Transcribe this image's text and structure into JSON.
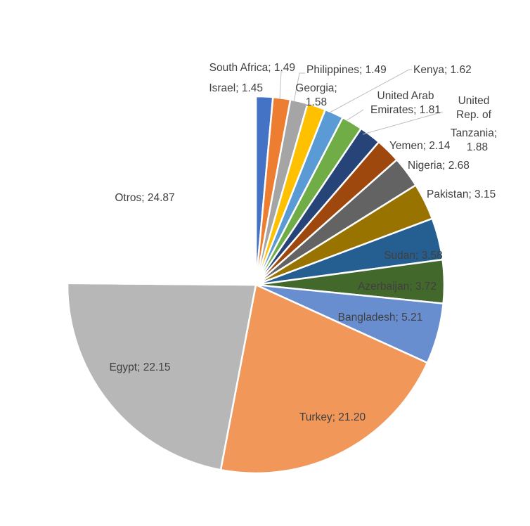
{
  "chart_data": {
    "type": "pie",
    "title": "",
    "slices": [
      {
        "label": "Israel",
        "value": 1.45,
        "text": "Israel; 1.45",
        "color": "#4472C4"
      },
      {
        "label": "South Africa",
        "value": 1.49,
        "text": "South Africa; 1.49",
        "color": "#ED7D31"
      },
      {
        "label": "Philippines",
        "value": 1.49,
        "text": "Philippines; 1.49",
        "color": "#A5A5A5"
      },
      {
        "label": "Georgia",
        "value": 1.58,
        "text": "Georgia; 1.58",
        "color": "#FFC000"
      },
      {
        "label": "Kenya",
        "value": 1.62,
        "text": "Kenya; 1.62",
        "color": "#5B9BD5"
      },
      {
        "label": "United Arab Emirates",
        "value": 1.81,
        "text": "United Arab Emirates; 1.81",
        "color": "#70AD47"
      },
      {
        "label": "United Rep. of Tanzania",
        "value": 1.88,
        "text": "United Rep. of Tanzania; 1.88",
        "color": "#264478"
      },
      {
        "label": "Yemen",
        "value": 2.14,
        "text": "Yemen; 2.14",
        "color": "#9E480E"
      },
      {
        "label": "Nigeria",
        "value": 2.68,
        "text": "Nigeria; 2.68",
        "color": "#636363"
      },
      {
        "label": "Pakistan",
        "value": 3.15,
        "text": "Pakistan; 3.15",
        "color": "#997300"
      },
      {
        "label": "Sudan",
        "value": 3.58,
        "text": "Sudan; 3.58",
        "color": "#255E91"
      },
      {
        "label": "Azerbaijan",
        "value": 3.72,
        "text": "Azerbaijan; 3.72",
        "color": "#43682B"
      },
      {
        "label": "Bangladesh",
        "value": 5.21,
        "text": "Bangladesh; 5.21",
        "color": "#698ED0"
      },
      {
        "label": "Turkey",
        "value": 21.2,
        "text": "Turkey; 21.20",
        "color": "#F1975A"
      },
      {
        "label": "Egypt",
        "value": 22.15,
        "text": "Egypt; 22.15",
        "color": "#B7B7B7"
      },
      {
        "label": "Otros",
        "value": 24.87,
        "text": "Otros; 24.87",
        "color": "#FFFFFF"
      }
    ],
    "legend": "none"
  }
}
